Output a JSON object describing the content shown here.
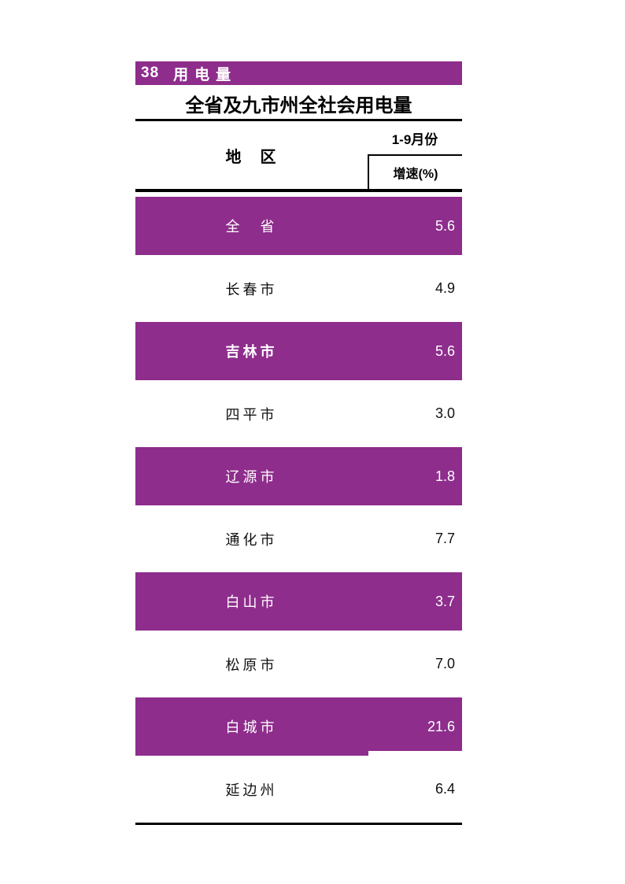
{
  "page": {
    "section_number": "38",
    "section_title": "用电量",
    "accent_color": "#8E2D8C",
    "rule_color": "#000000"
  },
  "table": {
    "title": "全省及九市州全社会用电量",
    "region_header": "地　区",
    "period_header": "1-9月份",
    "metric_header": "增速(%)",
    "rows": [
      {
        "region": "全　省",
        "value": "5.6",
        "highlight": true,
        "emphasis": false,
        "notch": false
      },
      {
        "region": "长春市",
        "value": "4.9",
        "highlight": false,
        "emphasis": false,
        "notch": false
      },
      {
        "region": "吉林市",
        "value": "5.6",
        "highlight": true,
        "emphasis": true,
        "notch": false
      },
      {
        "region": "四平市",
        "value": "3.0",
        "highlight": false,
        "emphasis": false,
        "notch": false
      },
      {
        "region": "辽源市",
        "value": "1.8",
        "highlight": true,
        "emphasis": false,
        "notch": false
      },
      {
        "region": "通化市",
        "value": "7.7",
        "highlight": false,
        "emphasis": false,
        "notch": false
      },
      {
        "region": "白山市",
        "value": "3.7",
        "highlight": true,
        "emphasis": false,
        "notch": false
      },
      {
        "region": "松原市",
        "value": "7.0",
        "highlight": false,
        "emphasis": false,
        "notch": false
      },
      {
        "region": "白城市",
        "value": "21.6",
        "highlight": true,
        "emphasis": false,
        "notch": true
      },
      {
        "region": "延边州",
        "value": "6.4",
        "highlight": false,
        "emphasis": false,
        "notch": false
      }
    ]
  }
}
